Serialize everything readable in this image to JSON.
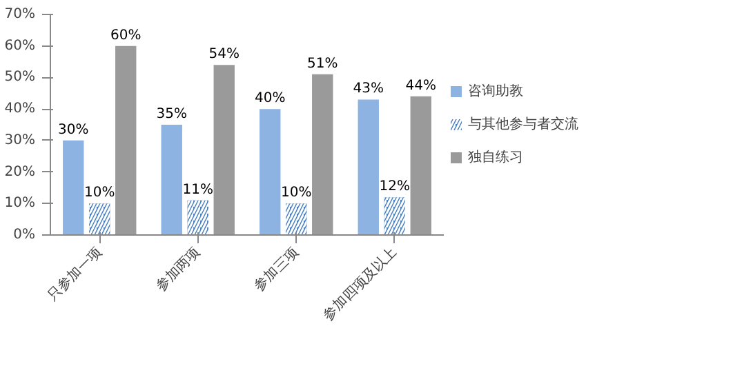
{
  "chart_data": {
    "type": "bar",
    "categories": [
      "只参加一项",
      "参加两项",
      "参加三项",
      "参加四项及以上"
    ],
    "series": [
      {
        "name": "咨询助教",
        "color": "#8db3e2",
        "values": [
          30,
          35,
          40,
          43
        ],
        "value_labels": [
          "30%",
          "35%",
          "40%",
          "43%"
        ]
      },
      {
        "name": "与其他参与者交流",
        "color": "#4f81bd",
        "values": [
          10,
          11,
          10,
          12
        ],
        "value_labels": [
          "10%",
          "11%",
          "10%",
          "12%"
        ]
      },
      {
        "name": "独自练习",
        "color": "#9a9a9a",
        "values": [
          60,
          54,
          51,
          44
        ],
        "value_labels": [
          "60%",
          "54%",
          "51%",
          "44%"
        ]
      }
    ],
    "ylim": [
      0,
      70
    ],
    "yticks": [
      {
        "value": 0,
        "label": "0%"
      },
      {
        "value": 10,
        "label": "10%"
      },
      {
        "value": 20,
        "label": "20%"
      },
      {
        "value": 30,
        "label": "30%"
      },
      {
        "value": 40,
        "label": "40%"
      },
      {
        "value": 50,
        "label": "50%"
      },
      {
        "value": 60,
        "label": "60%"
      },
      {
        "value": 70,
        "label": "70%"
      }
    ],
    "grid": false,
    "legend": "right"
  }
}
